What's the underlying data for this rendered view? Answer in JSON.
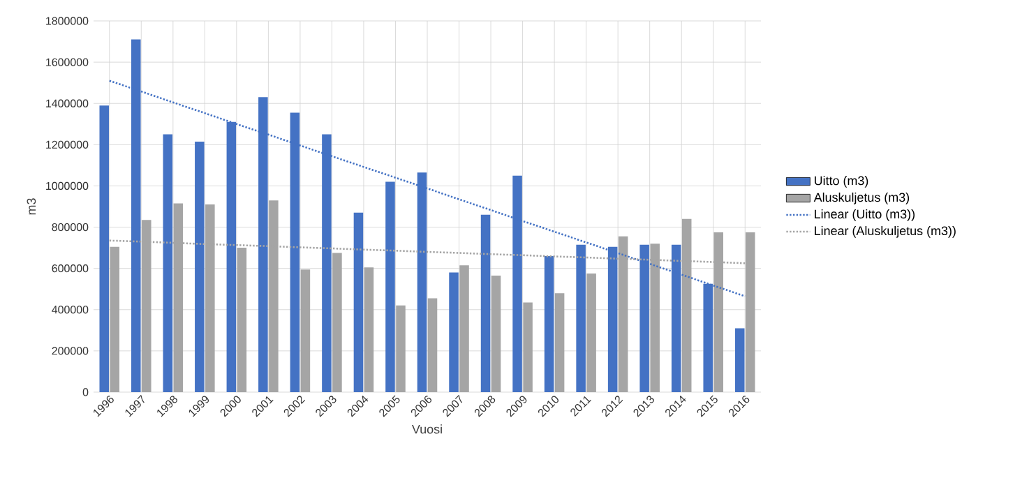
{
  "chart_data": {
    "type": "bar",
    "xlabel": "Vuosi",
    "ylabel": "m3",
    "categories": [
      "1996",
      "1997",
      "1998",
      "1999",
      "2000",
      "2001",
      "2002",
      "2003",
      "2004",
      "2005",
      "2006",
      "2007",
      "2008",
      "2009",
      "2010",
      "2011",
      "2012",
      "2013",
      "2014",
      "2015",
      "2016"
    ],
    "series": [
      {
        "name": "Uitto (m3)",
        "color": "#4472c4",
        "values": [
          1390000,
          1710000,
          1250000,
          1215000,
          1310000,
          1430000,
          1355000,
          1250000,
          870000,
          1020000,
          1065000,
          580000,
          860000,
          1050000,
          660000,
          715000,
          705000,
          715000,
          715000,
          525000,
          310000
        ]
      },
      {
        "name": "Aluskuljetus (m3)",
        "color": "#a5a5a5",
        "values": [
          705000,
          835000,
          915000,
          910000,
          700000,
          930000,
          595000,
          675000,
          605000,
          420000,
          455000,
          615000,
          565000,
          435000,
          480000,
          575000,
          755000,
          720000,
          840000,
          775000,
          775000
        ]
      },
      {
        "name": "Linear (Uitto (m3))",
        "type": "line",
        "line_style": "dotted",
        "color": "#4472c4",
        "values": [
          1510000,
          1458000,
          1405000,
          1353000,
          1300000,
          1249000,
          1196000,
          1144000,
          1092000,
          1040000,
          988000,
          935000,
          883000,
          830000,
          778000,
          726000,
          674000,
          622000,
          570000,
          517000,
          465000
        ]
      },
      {
        "name": "Linear (Aluskuljetus (m3))",
        "type": "line",
        "line_style": "dotted",
        "color": "#a5a5a5",
        "values": [
          735000,
          730000,
          724000,
          718000,
          713000,
          708000,
          702000,
          697000,
          691000,
          686000,
          680000,
          675000,
          669000,
          664000,
          658000,
          653000,
          647000,
          642000,
          636000,
          631000,
          625000
        ]
      }
    ],
    "ylim": [
      0,
      1800000
    ],
    "yticks": [
      0,
      200000,
      400000,
      600000,
      800000,
      1000000,
      1200000,
      1400000,
      1600000,
      1800000
    ],
    "grid": true,
    "legend": "right"
  }
}
